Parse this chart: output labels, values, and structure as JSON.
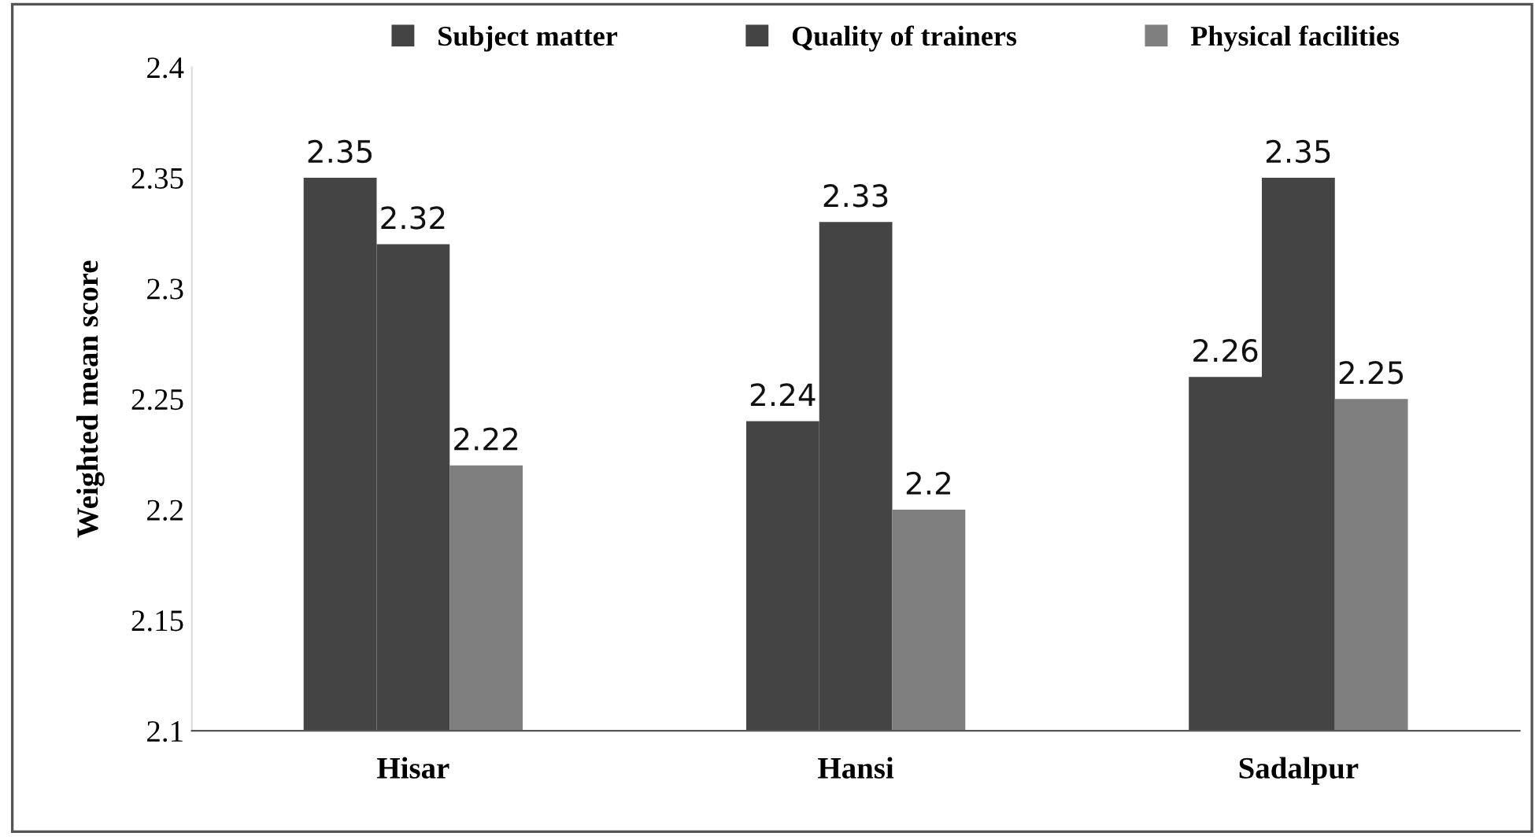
{
  "chart_data": {
    "type": "bar",
    "ylabel": "Weighted mean score",
    "categories": [
      "Hisar",
      "Hansi",
      "Sadalpur"
    ],
    "series": [
      {
        "name": "Subject matter",
        "color": "#444444",
        "values": [
          2.35,
          2.24,
          2.26
        ]
      },
      {
        "name": "Quality of trainers",
        "color": "#444444",
        "values": [
          2.32,
          2.33,
          2.35
        ]
      },
      {
        "name": "Physical facilities",
        "color": "#7f7f7f",
        "values": [
          2.22,
          2.2,
          2.25
        ]
      }
    ],
    "ylim": [
      2.1,
      2.4
    ],
    "yticks": [
      2.1,
      2.15,
      2.2,
      2.25,
      2.3,
      2.35,
      2.4
    ],
    "data_labels": true,
    "grid": false,
    "legend": "top"
  }
}
